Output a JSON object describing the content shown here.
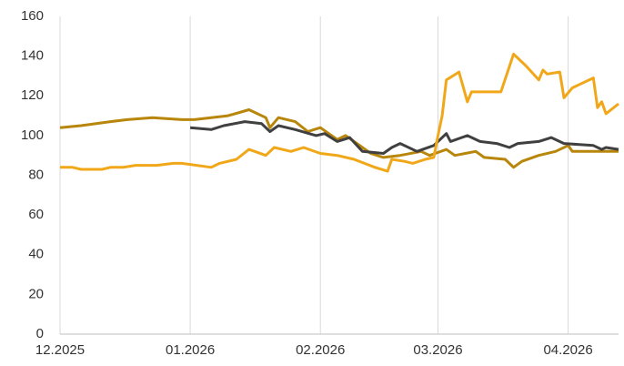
{
  "chart_data": {
    "type": "line",
    "ylim": [
      0,
      160
    ],
    "yticks": [
      0,
      20,
      40,
      60,
      80,
      100,
      120,
      140,
      160
    ],
    "xlim": [
      0,
      133
    ],
    "xticks": [
      {
        "value": 0,
        "label": "12.2025"
      },
      {
        "value": 31,
        "label": "01.2026"
      },
      {
        "value": 62,
        "label": "02.2026"
      },
      {
        "value": 90,
        "label": "03.2026"
      },
      {
        "value": 121,
        "label": "04.2026"
      }
    ],
    "grid": "vertical",
    "series": [
      {
        "color": "#b8860b",
        "x": [
          0,
          5,
          12,
          16,
          22,
          29,
          32,
          40,
          45,
          49,
          50,
          52,
          56,
          59,
          62,
          66,
          68,
          70,
          74,
          77,
          81,
          86,
          88,
          92,
          94,
          99,
          101,
          106,
          108,
          110,
          114,
          118,
          121,
          122,
          133
        ],
        "values": [
          104,
          105,
          107,
          108,
          109,
          108,
          108,
          110,
          113,
          109,
          104,
          109,
          107,
          102,
          104,
          98,
          100,
          97,
          91,
          89,
          90,
          92,
          90,
          93,
          90,
          92,
          89,
          88,
          84,
          87,
          90,
          92,
          95,
          92,
          92
        ]
      },
      {
        "color": "#404040",
        "x": [
          31,
          36,
          39,
          44,
          48,
          50,
          52,
          56,
          61,
          63,
          66,
          69,
          72,
          77,
          79,
          81,
          85,
          89,
          92,
          93,
          97,
          100,
          104,
          107,
          109,
          114,
          117,
          120,
          127,
          129,
          130,
          133
        ],
        "values": [
          104,
          103,
          105,
          107,
          106,
          102,
          105,
          103,
          100,
          101,
          97,
          99,
          92,
          91,
          94,
          96,
          92,
          95,
          101,
          97,
          100,
          97,
          96,
          94,
          96,
          97,
          99,
          96,
          95,
          93,
          94,
          93
        ]
      },
      {
        "color": "#f0a81a",
        "x": [
          0,
          3,
          5,
          10,
          12,
          15,
          18,
          23,
          27,
          29,
          36,
          38,
          42,
          45,
          49,
          51,
          55,
          58,
          62,
          66,
          70,
          75,
          78,
          79,
          82,
          84,
          87,
          89,
          90,
          91,
          92,
          95,
          97,
          98,
          105,
          108,
          111,
          114,
          115,
          116,
          119,
          120,
          122,
          127,
          128,
          129,
          130,
          133
        ],
        "values": [
          84,
          84,
          83,
          83,
          84,
          84,
          85,
          85,
          86,
          86,
          84,
          86,
          88,
          93,
          90,
          94,
          92,
          94,
          91,
          90,
          88,
          84,
          82,
          88,
          87,
          86,
          88,
          89,
          100,
          110,
          128,
          132,
          117,
          122,
          122,
          141,
          135,
          128,
          133,
          131,
          132,
          119,
          124,
          129,
          114,
          117,
          111,
          116
        ]
      }
    ]
  }
}
